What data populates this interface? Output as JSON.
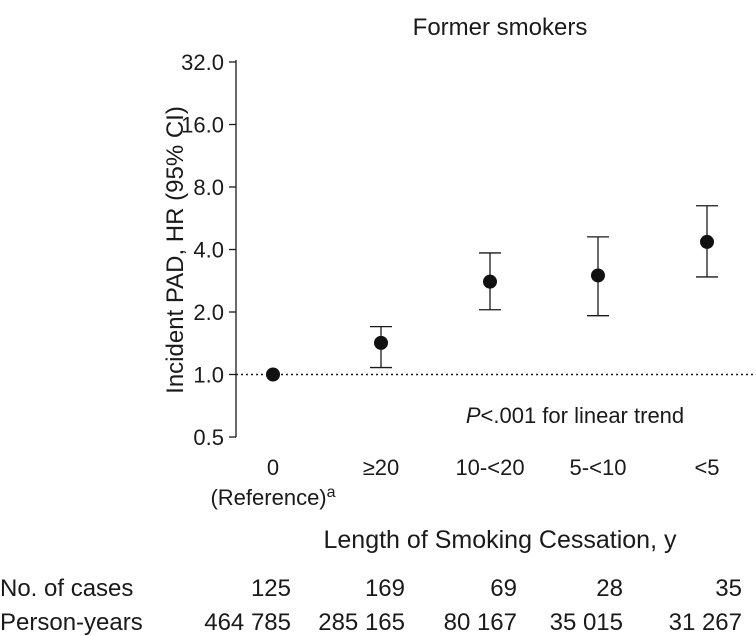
{
  "chart_data": {
    "type": "scatter",
    "title": "Former smokers",
    "xlabel": "Length of Smoking Cessation, y",
    "ylabel": "Incident PAD, HR (95% CI)",
    "yscale": "log2",
    "ylim": [
      0.5,
      32.0
    ],
    "yticks": [
      "0.5",
      "1.0",
      "2.0",
      "4.0",
      "8.0",
      "16.0",
      "32.0"
    ],
    "categories": [
      "0",
      "≥20",
      "10-<20",
      "5-<10",
      "<5"
    ],
    "reference_label": "(Reference)",
    "reference_superscript": "a",
    "reference_line": 1.0,
    "series": [
      {
        "values": [
          1.0,
          1.42,
          2.8,
          3.0,
          4.35
        ],
        "ci_low": [
          null,
          1.08,
          2.05,
          1.92,
          2.95
        ],
        "ci_high": [
          null,
          1.7,
          3.85,
          4.6,
          6.5
        ]
      }
    ],
    "annotation": {
      "p_symbol": "P",
      "p_text": "<.001 for linear trend"
    },
    "grid": false,
    "table": {
      "rows": [
        {
          "label": "No. of cases",
          "values": [
            "125",
            "169",
            "69",
            "28",
            "35"
          ]
        },
        {
          "label": "Person-years",
          "values": [
            "464 785",
            "285 165",
            "80 167",
            "35 015",
            "31 267"
          ]
        }
      ]
    }
  }
}
